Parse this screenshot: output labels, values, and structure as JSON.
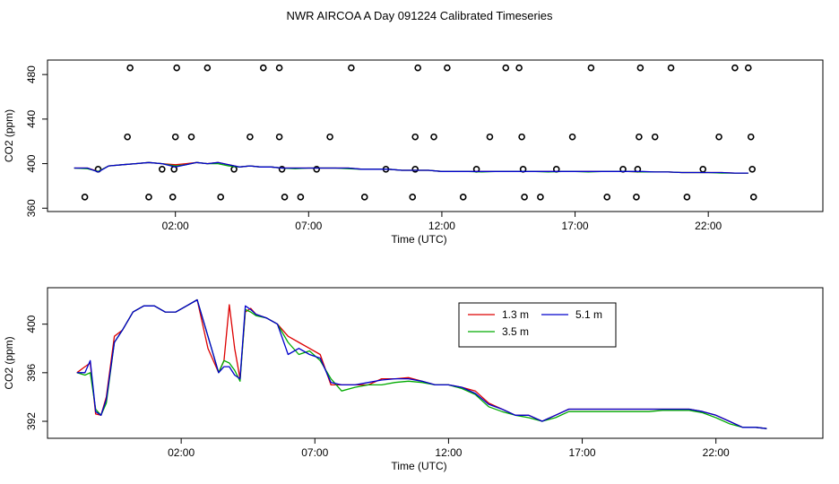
{
  "page_title": "NWR AIRCOA A  Day 091224  Calibrated Timeseries",
  "colors": {
    "1.3 m": "#dd0000",
    "3.5 m": "#00aa00",
    "5.1 m": "#0000cc",
    "axis": "#000000"
  },
  "chart_data": [
    {
      "type": "line",
      "title": "NWR AIRCOA A  Day 091224  Calibrated Timeseries",
      "xlabel": "Time (UTC)",
      "ylabel": "CO2 (ppm)",
      "x_unit": "hours UTC",
      "xlim": [
        -2.8,
        26.3
      ],
      "ylim": [
        357,
        493
      ],
      "xticks": [
        2,
        7,
        12,
        17,
        22
      ],
      "xtick_labels": [
        "02:00",
        "07:00",
        "12:00",
        "17:00",
        "22:00"
      ],
      "yticks": [
        360,
        400,
        440,
        480
      ],
      "ytick_labels": [
        "360",
        "400",
        "440",
        "480"
      ],
      "reference_points": {
        "marker": "open-circle",
        "points": [
          [
            -1.4,
            370
          ],
          [
            -0.9,
            395
          ],
          [
            0.2,
            424
          ],
          [
            0.3,
            486
          ],
          [
            1.0,
            370
          ],
          [
            1.5,
            395
          ],
          [
            1.9,
            370
          ],
          [
            1.95,
            395
          ],
          [
            2.0,
            424
          ],
          [
            2.05,
            486
          ],
          [
            2.6,
            424
          ],
          [
            3.2,
            486
          ],
          [
            3.7,
            370
          ],
          [
            4.2,
            395
          ],
          [
            4.8,
            424
          ],
          [
            5.3,
            486
          ],
          [
            5.9,
            486
          ],
          [
            5.9,
            424
          ],
          [
            6.0,
            395
          ],
          [
            6.1,
            370
          ],
          [
            6.7,
            370
          ],
          [
            7.3,
            395
          ],
          [
            7.8,
            424
          ],
          [
            8.6,
            486
          ],
          [
            9.1,
            370
          ],
          [
            9.9,
            395
          ],
          [
            10.9,
            370
          ],
          [
            11.0,
            395
          ],
          [
            11.0,
            424
          ],
          [
            11.1,
            486
          ],
          [
            11.7,
            424
          ],
          [
            12.2,
            486
          ],
          [
            12.8,
            370
          ],
          [
            13.3,
            395
          ],
          [
            13.8,
            424
          ],
          [
            14.4,
            486
          ],
          [
            14.9,
            486
          ],
          [
            15.0,
            424
          ],
          [
            15.05,
            395
          ],
          [
            15.1,
            370
          ],
          [
            15.7,
            370
          ],
          [
            16.3,
            395
          ],
          [
            16.9,
            424
          ],
          [
            17.6,
            486
          ],
          [
            18.2,
            370
          ],
          [
            18.8,
            395
          ],
          [
            19.3,
            370
          ],
          [
            19.35,
            395
          ],
          [
            19.4,
            424
          ],
          [
            19.45,
            486
          ],
          [
            20.0,
            424
          ],
          [
            20.6,
            486
          ],
          [
            21.2,
            370
          ],
          [
            21.8,
            395
          ],
          [
            22.4,
            424
          ],
          [
            23.0,
            486
          ],
          [
            23.5,
            486
          ],
          [
            23.6,
            424
          ],
          [
            23.65,
            395
          ],
          [
            23.7,
            370
          ]
        ]
      },
      "series": [
        {
          "name": "1.3 m",
          "color": "#dd0000",
          "x": [
            -1.8,
            -1.3,
            -0.9,
            -0.5,
            0.0,
            0.5,
            1.0,
            1.5,
            2.0,
            2.4,
            2.8,
            3.2,
            3.6,
            4.0,
            4.4,
            4.8,
            5.2,
            5.6,
            6.0,
            6.5,
            7.0,
            7.5,
            8.0,
            8.5,
            9.0,
            9.5,
            10.0,
            10.5,
            11.0,
            11.5,
            12.0,
            12.5,
            13.0,
            13.5,
            14.0,
            14.5,
            15.0,
            15.5,
            16.0,
            16.5,
            17.0,
            17.5,
            18.0,
            18.5,
            19.0,
            19.5,
            20.0,
            20.5,
            21.0,
            21.5,
            22.0,
            22.5,
            23.0,
            23.5
          ],
          "y": [
            396,
            396,
            393,
            398,
            399,
            400,
            401,
            400,
            399,
            400,
            401,
            400,
            401,
            399,
            397,
            398,
            397,
            397,
            396,
            396,
            396,
            396,
            396,
            396,
            395,
            395,
            395,
            394,
            394,
            394,
            393,
            393,
            393,
            393,
            393,
            393,
            393,
            393,
            393,
            393,
            393,
            393,
            393,
            393,
            393,
            392.5,
            392.5,
            392.5,
            392,
            392,
            392,
            392,
            391.5,
            391.5
          ]
        },
        {
          "name": "3.5 m",
          "color": "#00aa00",
          "x": [
            -1.8,
            -1.3,
            -0.9,
            -0.5,
            0.0,
            0.5,
            1.0,
            1.5,
            2.0,
            2.4,
            2.8,
            3.2,
            3.6,
            4.0,
            4.4,
            4.8,
            5.2,
            5.6,
            6.0,
            6.5,
            7.0,
            7.5,
            8.0,
            8.5,
            9.0,
            9.5,
            10.0,
            10.5,
            11.0,
            11.5,
            12.0,
            12.5,
            13.0,
            13.5,
            14.0,
            14.5,
            15.0,
            15.5,
            16.0,
            16.5,
            17.0,
            17.5,
            18.0,
            18.5,
            19.0,
            19.5,
            20.0,
            20.5,
            21.0,
            21.5,
            22.0,
            22.5,
            23.0,
            23.5
          ],
          "y": [
            396,
            395.5,
            393,
            398,
            399,
            400,
            401,
            400,
            398,
            399,
            401,
            400,
            400,
            398,
            397,
            398,
            397,
            397,
            396,
            395.5,
            396,
            396,
            396,
            395.5,
            395,
            395,
            395,
            394,
            394,
            394,
            393,
            393,
            393,
            392.5,
            393,
            393,
            393,
            393,
            392.5,
            393,
            393,
            392.5,
            393,
            393,
            393,
            392.5,
            392.5,
            392.5,
            392,
            392,
            392,
            391.5,
            391.5,
            391.5
          ]
        },
        {
          "name": "5.1 m",
          "color": "#0000cc",
          "x": [
            -1.8,
            -1.3,
            -0.9,
            -0.5,
            0.0,
            0.5,
            1.0,
            1.5,
            2.0,
            2.4,
            2.8,
            3.2,
            3.6,
            4.0,
            4.4,
            4.8,
            5.2,
            5.6,
            6.0,
            6.5,
            7.0,
            7.5,
            8.0,
            8.5,
            9.0,
            9.5,
            10.0,
            10.5,
            11.0,
            11.5,
            12.0,
            12.5,
            13.0,
            13.5,
            14.0,
            14.5,
            15.0,
            15.5,
            16.0,
            16.5,
            17.0,
            17.5,
            18.0,
            18.5,
            19.0,
            19.5,
            20.0,
            20.5,
            21.0,
            21.5,
            22.0,
            22.5,
            23.0,
            23.5
          ],
          "y": [
            396,
            396,
            392.5,
            398,
            399,
            400,
            401,
            400,
            397,
            399,
            401,
            400,
            401,
            399,
            397,
            398,
            397,
            397,
            396,
            396,
            396,
            396,
            396,
            396,
            395,
            395,
            395,
            394,
            394,
            394,
            393,
            393,
            393,
            393,
            393,
            393,
            393,
            393,
            393,
            393,
            393,
            393,
            393,
            393,
            393,
            393,
            392.5,
            392.5,
            392,
            392,
            392,
            392,
            391.5,
            391.5
          ]
        }
      ]
    },
    {
      "type": "line",
      "xlabel": "Time (UTC)",
      "ylabel": "CO2 (ppm)",
      "x_unit": "hours UTC",
      "xlim": [
        -3.0,
        26.0
      ],
      "ylim": [
        390.6,
        403.0
      ],
      "xticks": [
        2,
        7,
        12,
        17,
        22
      ],
      "xtick_labels": [
        "02:00",
        "07:00",
        "12:00",
        "17:00",
        "22:00"
      ],
      "yticks": [
        392,
        396,
        400
      ],
      "ytick_labels": [
        "392",
        "396",
        "400"
      ],
      "legend": {
        "position": "top-center",
        "entries": [
          "1.3 m",
          "3.5 m",
          "5.1 m"
        ]
      },
      "series": [
        {
          "name": "1.3 m",
          "color": "#dd0000",
          "x": [
            -1.9,
            -1.6,
            -1.4,
            -1.2,
            -1.0,
            -0.8,
            -0.5,
            -0.2,
            0.2,
            0.6,
            1.0,
            1.4,
            1.8,
            2.2,
            2.6,
            3.0,
            3.4,
            3.6,
            3.8,
            4.0,
            4.2,
            4.4,
            4.6,
            4.8,
            5.2,
            5.6,
            6.0,
            6.4,
            6.8,
            7.2,
            7.6,
            8.0,
            8.5,
            9.0,
            9.5,
            10.0,
            10.5,
            11.0,
            11.5,
            12.0,
            12.5,
            13.0,
            13.5,
            14.0,
            14.5,
            15.0,
            15.5,
            16.0,
            16.5,
            17.0,
            17.5,
            18.0,
            18.5,
            19.0,
            19.5,
            20.0,
            20.5,
            21.0,
            21.5,
            22.0,
            22.5,
            23.0,
            23.5,
            23.9
          ],
          "y": [
            396,
            396.5,
            396.8,
            392.6,
            392.5,
            394,
            399,
            399.5,
            401,
            401.5,
            401.5,
            401,
            401,
            401.5,
            402,
            398,
            396,
            397,
            401.6,
            398,
            395.5,
            401,
            401.3,
            400.8,
            400.5,
            400,
            399,
            398.5,
            398,
            397.5,
            395,
            395,
            395,
            395,
            395.5,
            395.5,
            395.6,
            395.3,
            395,
            395,
            394.8,
            394.5,
            393.5,
            393,
            392.5,
            392.5,
            392,
            392.5,
            393,
            393,
            393,
            393,
            393,
            393,
            393,
            393,
            393,
            393,
            392.8,
            392.5,
            392,
            391.5,
            391.5,
            391.4
          ]
        },
        {
          "name": "3.5 m",
          "color": "#00aa00",
          "x": [
            -1.9,
            -1.6,
            -1.4,
            -1.2,
            -1.0,
            -0.8,
            -0.5,
            -0.2,
            0.2,
            0.6,
            1.0,
            1.4,
            1.8,
            2.2,
            2.6,
            3.0,
            3.4,
            3.6,
            3.8,
            4.0,
            4.2,
            4.4,
            4.6,
            4.8,
            5.2,
            5.6,
            6.0,
            6.4,
            6.8,
            7.2,
            7.6,
            8.0,
            8.5,
            9.0,
            9.5,
            10.0,
            10.5,
            11.0,
            11.5,
            12.0,
            12.5,
            13.0,
            13.5,
            14.0,
            14.5,
            15.0,
            15.5,
            16.0,
            16.5,
            17.0,
            17.5,
            18.0,
            18.5,
            19.0,
            19.5,
            20.0,
            20.5,
            21.0,
            21.5,
            22.0,
            22.5,
            23.0,
            23.5,
            23.9
          ],
          "y": [
            396,
            395.8,
            396,
            393,
            392.5,
            393.5,
            398.5,
            399.5,
            401,
            401.5,
            401.5,
            401,
            401,
            401.5,
            402,
            399,
            396,
            397,
            396.8,
            396.2,
            395.3,
            401.2,
            401,
            400.7,
            400.5,
            400,
            398.5,
            397.5,
            397.8,
            397,
            395.5,
            394.5,
            394.8,
            395,
            395,
            395.2,
            395.3,
            395.2,
            395,
            395,
            394.7,
            394.2,
            393.2,
            392.8,
            392.5,
            392.3,
            392,
            392.3,
            392.8,
            392.8,
            392.8,
            392.8,
            392.8,
            392.8,
            392.8,
            392.9,
            392.9,
            392.9,
            392.7,
            392.3,
            391.8,
            391.5,
            391.5,
            391.4
          ]
        },
        {
          "name": "5.1 m",
          "color": "#0000cc",
          "x": [
            -1.9,
            -1.6,
            -1.4,
            -1.2,
            -1.0,
            -0.8,
            -0.5,
            -0.2,
            0.2,
            0.6,
            1.0,
            1.4,
            1.8,
            2.2,
            2.6,
            3.0,
            3.4,
            3.6,
            3.8,
            4.0,
            4.2,
            4.4,
            4.6,
            4.8,
            5.2,
            5.6,
            6.0,
            6.4,
            6.8,
            7.2,
            7.6,
            8.0,
            8.5,
            9.0,
            9.5,
            10.0,
            10.5,
            11.0,
            11.5,
            12.0,
            12.5,
            13.0,
            13.5,
            14.0,
            14.5,
            15.0,
            15.5,
            16.0,
            16.5,
            17.0,
            17.5,
            18.0,
            18.5,
            19.0,
            19.5,
            20.0,
            20.5,
            21.0,
            21.5,
            22.0,
            22.5,
            23.0,
            23.5,
            23.9
          ],
          "y": [
            396,
            396,
            397,
            392.8,
            392.5,
            393.8,
            398.5,
            399.5,
            401,
            401.5,
            401.5,
            401,
            401,
            401.5,
            402,
            399,
            396,
            396.5,
            396.5,
            395.8,
            395.5,
            401.5,
            401.2,
            400.8,
            400.5,
            400,
            397.5,
            398,
            397.5,
            397.2,
            395.2,
            395,
            395,
            395.2,
            395.4,
            395.5,
            395.5,
            395.3,
            395,
            395,
            394.8,
            394.3,
            393.4,
            393,
            392.5,
            392.5,
            392,
            392.5,
            393,
            393,
            393,
            393,
            393,
            393,
            393,
            393,
            393,
            393,
            392.8,
            392.5,
            392,
            391.5,
            391.5,
            391.4
          ]
        }
      ]
    }
  ]
}
